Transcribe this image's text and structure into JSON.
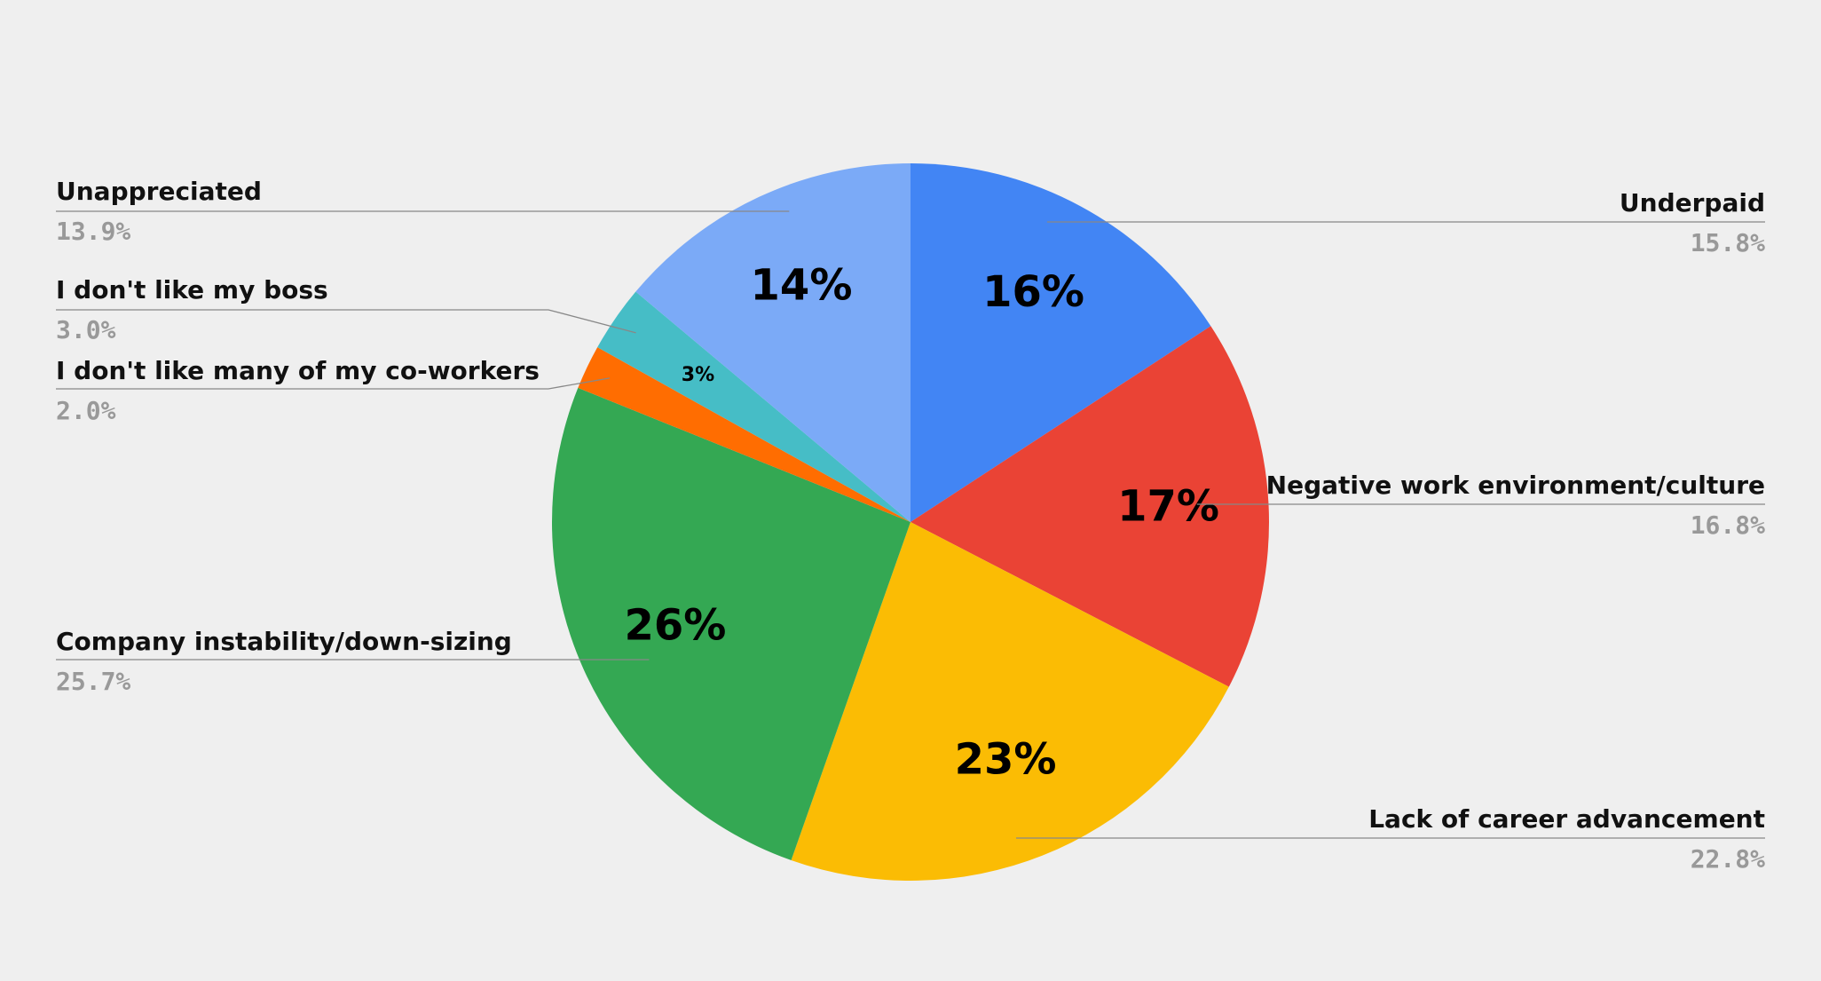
{
  "chart_data": {
    "type": "pie",
    "categories": [
      "Underpaid",
      "Negative work environment/culture",
      "Lack of career advancement",
      "Company instability/down-sizing",
      "I don't like many of my co-workers",
      "I don't like my boss",
      "Unappreciated"
    ],
    "values": [
      15.8,
      16.8,
      22.8,
      25.7,
      2.0,
      3.0,
      13.9
    ],
    "value_labels": [
      "15.8%",
      "16.8%",
      "22.8%",
      "25.7%",
      "2.0%",
      "3.0%",
      "13.9%"
    ],
    "inner_labels": [
      "16%",
      "17%",
      "23%",
      "26%",
      null,
      "3%",
      "14%"
    ],
    "colors": [
      "#4285f4",
      "#ea4335",
      "#fbbc04",
      "#34a853",
      "#ff6d01",
      "#46bdc6",
      "#7baaf7"
    ]
  }
}
